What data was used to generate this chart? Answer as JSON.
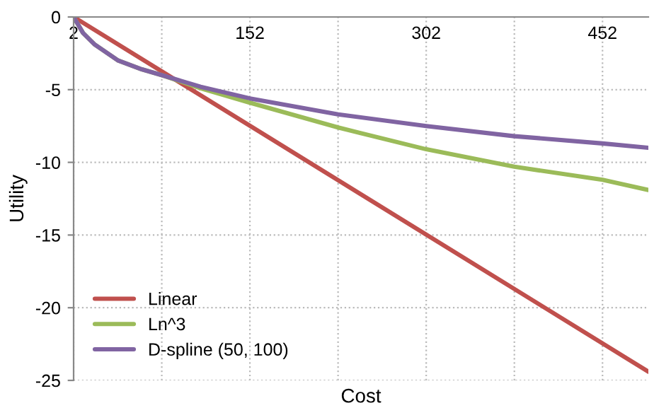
{
  "chart_data": {
    "type": "line",
    "xlabel": "Cost",
    "ylabel": "Utility",
    "xlim": [
      2,
      491
    ],
    "ylim": [
      -25,
      0
    ],
    "xticks": [
      2,
      {
        "value": 77,
        "label": null
      },
      152,
      {
        "value": 227,
        "label": null
      },
      302,
      {
        "value": 377,
        "label": null
      },
      452
    ],
    "yticks": [
      0,
      -5,
      -10,
      -15,
      -20,
      -25
    ],
    "grid": true,
    "legend": "bottom left",
    "marker": "none",
    "line_style": "solid",
    "series": [
      {
        "name": "Linear",
        "color": "#c0504d",
        "x": [
          2,
          491
        ],
        "values": [
          0,
          -24.4
        ]
      },
      {
        "name": "Ln^3",
        "color": "#9bbb59",
        "x": [
          2,
          10,
          20,
          40,
          60,
          77,
          110,
          152,
          227,
          302,
          377,
          452,
          491
        ],
        "values": [
          0,
          -1.1,
          -1.9,
          -3.0,
          -3.6,
          -4.0,
          -4.9,
          -5.9,
          -7.6,
          -9.1,
          -10.3,
          -11.2,
          -11.9
        ]
      },
      {
        "name": "D-spline (50, 100)",
        "color": "#8064a2",
        "x": [
          2,
          10,
          20,
          40,
          60,
          77,
          110,
          152,
          227,
          302,
          377,
          452,
          491
        ],
        "values": [
          0,
          -1.1,
          -1.9,
          -3.0,
          -3.6,
          -4.0,
          -4.8,
          -5.6,
          -6.7,
          -7.5,
          -8.2,
          -8.7,
          -9.0
        ]
      }
    ]
  }
}
